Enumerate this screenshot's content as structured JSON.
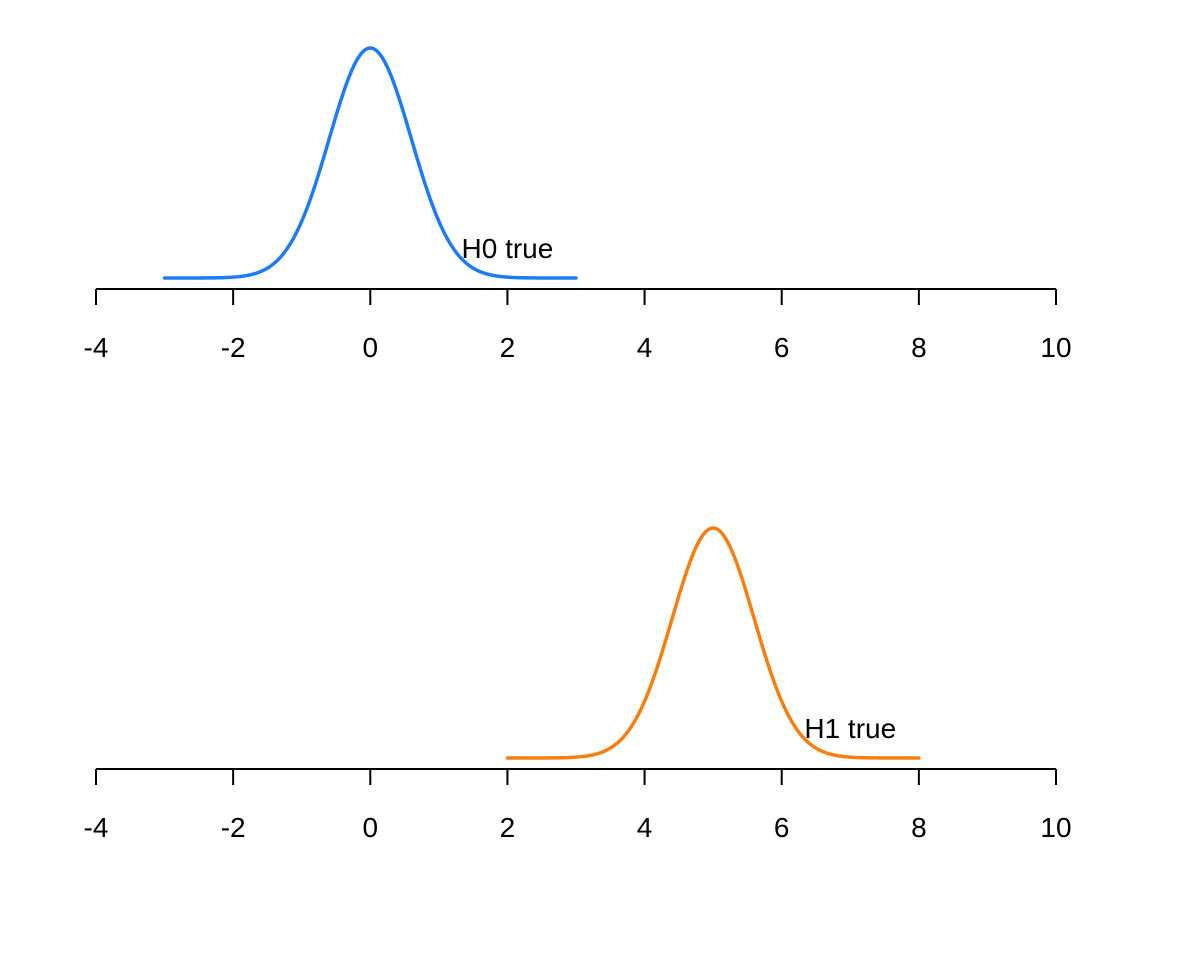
{
  "chart_data": [
    {
      "type": "line",
      "series": [
        {
          "x": [
            -3,
            -2.75,
            -2.5,
            -2.25,
            -2,
            -1.75,
            -1.5,
            -1.25,
            -1,
            -0.75,
            -0.5,
            -0.25,
            0,
            0.25,
            0.5,
            0.75,
            1,
            1.25,
            1.5,
            1.75,
            2,
            2.25,
            2.5,
            2.75,
            3
          ],
          "values": [
            0.0018,
            0.0035,
            0.0067,
            0.0121,
            0.0228,
            0.0413,
            0.0725,
            0.1234,
            0.2042,
            0.3036,
            0.4218,
            0.5478,
            0.6675,
            0.5478,
            0.4218,
            0.3036,
            0.2042,
            0.1234,
            0.0725,
            0.0413,
            0.0228,
            0.0121,
            0.0067,
            0.0035,
            0.0018
          ],
          "color": "#1f7bf2"
        }
      ],
      "annotation": "H0 true",
      "annotation_x": 2,
      "xlim": [
        -4,
        10
      ],
      "xticks": [
        "-4",
        "-2",
        "0",
        "2",
        "4",
        "6",
        "8",
        "10"
      ],
      "xtick_values": [
        -4,
        -2,
        0,
        2,
        4,
        6,
        8,
        10
      ]
    },
    {
      "type": "line",
      "series": [
        {
          "x": [
            2,
            2.25,
            2.5,
            2.75,
            3,
            3.25,
            3.5,
            3.75,
            4,
            4.25,
            4.5,
            4.75,
            5,
            5.25,
            5.5,
            5.75,
            6,
            6.25,
            6.5,
            6.75,
            7,
            7.25,
            7.5,
            7.75,
            8
          ],
          "values": [
            0.0018,
            0.0035,
            0.0067,
            0.0121,
            0.0228,
            0.0413,
            0.0725,
            0.1234,
            0.2042,
            0.3036,
            0.4218,
            0.5478,
            0.6675,
            0.5478,
            0.4218,
            0.3036,
            0.2042,
            0.1234,
            0.0725,
            0.0413,
            0.0228,
            0.0121,
            0.0067,
            0.0035,
            0.0018
          ],
          "color": "#f97e10"
        }
      ],
      "annotation": "H1 true",
      "annotation_x": 7,
      "xlim": [
        -4,
        10
      ],
      "xticks": [
        "-4",
        "-2",
        "0",
        "2",
        "4",
        "6",
        "8",
        "10"
      ],
      "xtick_values": [
        -4,
        -2,
        0,
        2,
        4,
        6,
        8,
        10
      ]
    }
  ]
}
